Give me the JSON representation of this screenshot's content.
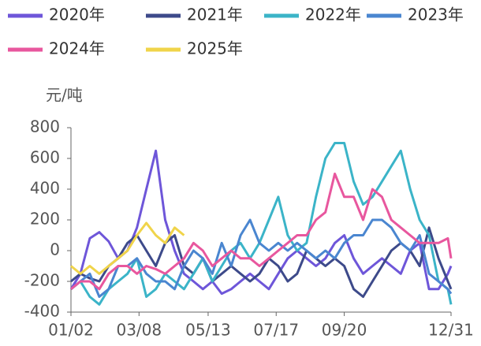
{
  "chart_data": {
    "type": "line",
    "y_label": "元/吨",
    "x": [
      2,
      11,
      20,
      29,
      38,
      47,
      56,
      65,
      74,
      83,
      92,
      101,
      110,
      119,
      128,
      137,
      146,
      155,
      164,
      173,
      182,
      191,
      200,
      209,
      218,
      227,
      236,
      245,
      254,
      263,
      272,
      281,
      290,
      299,
      308,
      317,
      326,
      335,
      344,
      353,
      362,
      365
    ],
    "xlim": [
      2,
      365
    ],
    "xticks": [
      {
        "value": 2,
        "label": "01/02"
      },
      {
        "value": 67,
        "label": "03/08"
      },
      {
        "value": 133,
        "label": "05/13"
      },
      {
        "value": 198,
        "label": "07/17"
      },
      {
        "value": 263,
        "label": "09/20"
      },
      {
        "value": 365,
        "label": "12/31"
      }
    ],
    "ylim": [
      -400,
      800
    ],
    "yticks": [
      -400,
      -200,
      0,
      200,
      400,
      600,
      800
    ],
    "series": [
      {
        "name": "2020年",
        "color": "#6e56d9",
        "values": [
          -250,
          -150,
          80,
          120,
          60,
          -50,
          0,
          150,
          400,
          650,
          200,
          0,
          -150,
          -200,
          -250,
          -200,
          -280,
          -250,
          -200,
          -150,
          -200,
          -250,
          -150,
          -50,
          0,
          -50,
          -100,
          -50,
          50,
          100,
          -50,
          -150,
          -100,
          -50,
          -100,
          -150,
          0,
          50,
          -250,
          -250,
          -150,
          -100
        ]
      },
      {
        "name": "2021年",
        "color": "#3d4a8a",
        "values": [
          -200,
          -150,
          -180,
          -200,
          -100,
          -50,
          50,
          100,
          0,
          -100,
          50,
          100,
          -100,
          -150,
          -50,
          -200,
          -150,
          -100,
          -150,
          -200,
          -150,
          -50,
          -100,
          -200,
          -150,
          0,
          -50,
          -100,
          -50,
          -100,
          -250,
          -300,
          -200,
          -100,
          0,
          50,
          0,
          -100,
          150,
          -50,
          -200,
          -250
        ]
      },
      {
        "name": "2022年",
        "color": "#3bb4c8",
        "values": [
          -250,
          -200,
          -300,
          -350,
          -250,
          -200,
          -150,
          -50,
          -300,
          -250,
          -150,
          -200,
          -250,
          -150,
          -50,
          -200,
          -100,
          0,
          50,
          -50,
          50,
          200,
          350,
          100,
          0,
          50,
          350,
          600,
          700,
          700,
          450,
          300,
          350,
          450,
          550,
          650,
          400,
          200,
          100,
          -200,
          -250,
          -350
        ]
      },
      {
        "name": "2023年",
        "color": "#4a86d0",
        "values": [
          -250,
          -200,
          -150,
          -300,
          -250,
          -100,
          -100,
          -50,
          -150,
          -200,
          -200,
          -250,
          -100,
          0,
          -50,
          -150,
          50,
          -100,
          100,
          200,
          50,
          0,
          50,
          0,
          50,
          0,
          -50,
          0,
          -50,
          50,
          100,
          100,
          200,
          200,
          150,
          50,
          0,
          100,
          -150,
          -200,
          -250,
          -280
        ]
      },
      {
        "name": "2024年",
        "color": "#e8579e",
        "values": [
          -250,
          -200,
          -200,
          -250,
          -150,
          -100,
          -100,
          -150,
          -100,
          -120,
          -150,
          -100,
          -50,
          50,
          0,
          -100,
          -50,
          0,
          -50,
          -50,
          -100,
          -50,
          0,
          50,
          100,
          100,
          200,
          250,
          500,
          350,
          350,
          200,
          400,
          350,
          200,
          150,
          100,
          50,
          50,
          50,
          80,
          -50
        ]
      },
      {
        "name": "2025年",
        "color": "#f0d44a",
        "values": [
          -100,
          -150,
          -100,
          -150,
          -100,
          -50,
          0,
          100,
          180,
          100,
          50,
          150,
          100,
          null,
          null,
          null,
          null,
          null,
          null,
          null,
          null,
          null,
          null,
          null,
          null,
          null,
          null,
          null,
          null,
          null,
          null,
          null,
          null,
          null,
          null,
          null,
          null,
          null,
          null,
          null,
          null,
          null
        ]
      }
    ]
  }
}
